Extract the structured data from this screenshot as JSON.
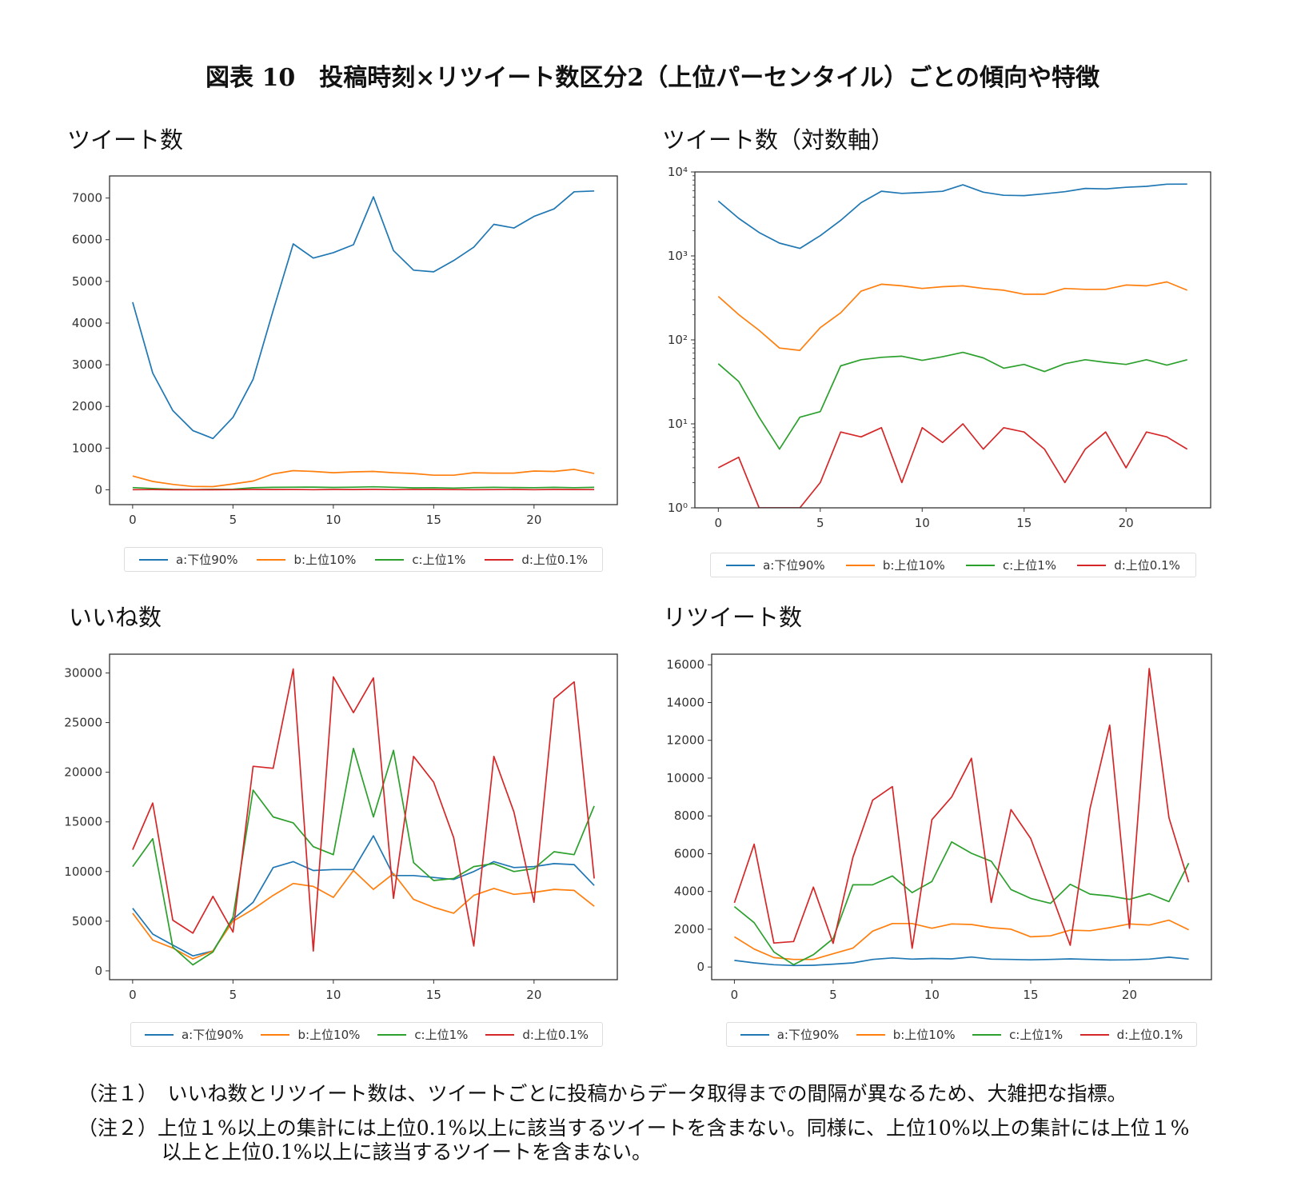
{
  "title": "図表 10　投稿時刻×リツイート数区分2（上位パーセンタイル）ごとの傾向や特徴",
  "legend": [
    "a:下位90%",
    "b:上位10%",
    "c:上位1%",
    "d:上位0.1%"
  ],
  "colors": [
    "#1f77b4",
    "#ff7f0e",
    "#2ca02c",
    "#d62728"
  ],
  "notes": [
    "（注１）　いいね数とリツイート数は、ツイートごとに投稿からデータ取得までの間隔が異なるため、大雑把な指標。",
    "（注２）上位１%以上の集計には上位0.1%以上に該当するツイートを含まない。同様に、上位10%以上の集計には上位１%",
    "以上と上位0.1%以上に該当するツイートを含まない。"
  ],
  "chart_data": [
    {
      "type": "line",
      "title": "ツイート数",
      "x": [
        0,
        1,
        2,
        3,
        4,
        5,
        6,
        7,
        8,
        9,
        10,
        11,
        12,
        13,
        14,
        15,
        16,
        17,
        18,
        19,
        20,
        21,
        22,
        23
      ],
      "xticks": [
        0,
        5,
        10,
        15,
        20
      ],
      "xtick_labels": [
        "0",
        "5",
        "10",
        "15",
        "20"
      ],
      "yticks": [
        0,
        1000,
        2000,
        3000,
        4000,
        5000,
        6000,
        7000
      ],
      "ytick_labels": [
        "0",
        "1000",
        "2000",
        "3000",
        "4000",
        "5000",
        "6000",
        "7000"
      ],
      "yscale": "linear",
      "xlim": [
        -1.15,
        24.15
      ],
      "ylim": [
        -356,
        7530
      ],
      "legend_position": "below",
      "series": [
        {
          "name": "a:下位90%",
          "values": [
            4500,
            2800,
            1900,
            1420,
            1230,
            1740,
            2650,
            4300,
            5900,
            5560,
            5690,
            5880,
            7030,
            5740,
            5270,
            5230,
            5500,
            5820,
            6370,
            6280,
            6560,
            6740,
            7150,
            7170
          ]
        },
        {
          "name": "b:上位10%",
          "values": [
            330,
            200,
            130,
            80,
            75,
            140,
            210,
            380,
            460,
            440,
            410,
            430,
            440,
            410,
            390,
            350,
            350,
            410,
            400,
            400,
            450,
            440,
            490,
            390
          ]
        },
        {
          "name": "c:上位1%",
          "values": [
            52,
            32,
            12,
            5,
            12,
            14,
            49,
            58,
            62,
            64,
            57,
            63,
            71,
            61,
            46,
            51,
            42,
            52,
            58,
            54,
            51,
            58,
            50,
            58
          ]
        },
        {
          "name": "d:上位0.1%",
          "values": [
            3,
            4,
            1,
            1,
            1,
            2,
            8,
            7,
            9,
            2,
            9,
            6,
            10,
            5,
            9,
            8,
            5,
            2,
            5,
            8,
            3,
            8,
            7,
            5
          ]
        }
      ]
    },
    {
      "type": "line",
      "title": "ツイート数（対数軸）",
      "x": [
        0,
        1,
        2,
        3,
        4,
        5,
        6,
        7,
        8,
        9,
        10,
        11,
        12,
        13,
        14,
        15,
        16,
        17,
        18,
        19,
        20,
        21,
        22,
        23
      ],
      "xticks": [
        0,
        5,
        10,
        15,
        20
      ],
      "xtick_labels": [
        "0",
        "5",
        "10",
        "15",
        "20"
      ],
      "yticks": [
        1,
        10,
        100,
        1000,
        10000
      ],
      "ytick_labels": [
        "10⁰",
        "10¹",
        "10²",
        "10³",
        "10⁴"
      ],
      "yscale": "log",
      "xlim": [
        -1.15,
        24.15
      ],
      "ylim": [
        1,
        10000
      ],
      "legend_position": "below",
      "series": [
        {
          "name": "a:下位90%",
          "values": [
            4500,
            2800,
            1900,
            1420,
            1230,
            1740,
            2650,
            4300,
            5900,
            5560,
            5690,
            5880,
            7030,
            5740,
            5270,
            5230,
            5500,
            5820,
            6370,
            6280,
            6560,
            6740,
            7150,
            7170
          ]
        },
        {
          "name": "b:上位10%",
          "values": [
            330,
            200,
            130,
            80,
            75,
            140,
            210,
            380,
            460,
            440,
            410,
            430,
            440,
            410,
            390,
            350,
            350,
            410,
            400,
            400,
            450,
            440,
            490,
            390
          ]
        },
        {
          "name": "c:上位1%",
          "values": [
            52,
            32,
            12,
            5,
            12,
            14,
            49,
            58,
            62,
            64,
            57,
            63,
            71,
            61,
            46,
            51,
            42,
            52,
            58,
            54,
            51,
            58,
            50,
            58
          ]
        },
        {
          "name": "d:上位0.1%",
          "values": [
            3,
            4,
            1,
            1,
            1,
            2,
            8,
            7,
            9,
            2,
            9,
            6,
            10,
            5,
            9,
            8,
            5,
            2,
            5,
            8,
            3,
            8,
            7,
            5
          ]
        }
      ]
    },
    {
      "type": "line",
      "title": "いいね数",
      "x": [
        0,
        1,
        2,
        3,
        4,
        5,
        6,
        7,
        8,
        9,
        10,
        11,
        12,
        13,
        14,
        15,
        16,
        17,
        18,
        19,
        20,
        21,
        22,
        23
      ],
      "xticks": [
        0,
        5,
        10,
        15,
        20
      ],
      "xtick_labels": [
        "0",
        "5",
        "10",
        "15",
        "20"
      ],
      "yticks": [
        0,
        5000,
        10000,
        15000,
        20000,
        25000,
        30000
      ],
      "ytick_labels": [
        "0",
        "5000",
        "10000",
        "15000",
        "20000",
        "25000",
        "30000"
      ],
      "yscale": "linear",
      "xlim": [
        -1.15,
        24.15
      ],
      "ylim": [
        -890,
        31890
      ],
      "legend_position": "below",
      "series": [
        {
          "name": "a:下位90%",
          "values": [
            6300,
            3700,
            2600,
            1500,
            2000,
            5200,
            6900,
            10400,
            11000,
            10100,
            10200,
            10200,
            13600,
            9600,
            9600,
            9400,
            9200,
            10000,
            11000,
            10400,
            10500,
            10800,
            10700,
            8600
          ]
        },
        {
          "name": "b:上位10%",
          "values": [
            5800,
            3100,
            2300,
            1200,
            2000,
            5000,
            6200,
            7600,
            8800,
            8500,
            7400,
            10100,
            8200,
            9800,
            7200,
            6400,
            5800,
            7600,
            8300,
            7700,
            7900,
            8200,
            8100,
            6500
          ]
        },
        {
          "name": "c:上位1%",
          "values": [
            10500,
            13300,
            2400,
            600,
            1900,
            5400,
            18200,
            15500,
            14900,
            12500,
            11700,
            22400,
            15500,
            22200,
            10900,
            9100,
            9300,
            10500,
            10800,
            10000,
            10300,
            12000,
            11700,
            16600
          ]
        },
        {
          "name": "d:上位0.1%",
          "values": [
            12200,
            16900,
            5100,
            3800,
            7500,
            3900,
            20600,
            20400,
            30400,
            2000,
            29600,
            26000,
            29500,
            7300,
            21600,
            19000,
            13400,
            2500,
            21600,
            16000,
            6900,
            27400,
            29100,
            9300
          ]
        }
      ]
    },
    {
      "type": "line",
      "title": "リツイート数",
      "x": [
        0,
        1,
        2,
        3,
        4,
        5,
        6,
        7,
        8,
        9,
        10,
        11,
        12,
        13,
        14,
        15,
        16,
        17,
        18,
        19,
        20,
        21,
        22,
        23
      ],
      "xticks": [
        0,
        5,
        10,
        15,
        20
      ],
      "xtick_labels": [
        "0",
        "5",
        "10",
        "15",
        "20"
      ],
      "yticks": [
        0,
        2000,
        4000,
        6000,
        8000,
        10000,
        12000,
        14000,
        16000
      ],
      "ytick_labels": [
        "0",
        "2000",
        "4000",
        "6000",
        "8000",
        "10000",
        "12000",
        "14000",
        "16000"
      ],
      "yscale": "linear",
      "xlim": [
        -1.15,
        24.15
      ],
      "ylim": [
        -670,
        16560
      ],
      "legend_position": "below",
      "series": [
        {
          "name": "a:下位90%",
          "values": [
            350,
            220,
            120,
            80,
            90,
            150,
            220,
            400,
            480,
            420,
            450,
            430,
            530,
            420,
            400,
            380,
            400,
            430,
            400,
            370,
            380,
            420,
            520,
            420
          ]
        },
        {
          "name": "b:上位10%",
          "values": [
            1600,
            950,
            500,
            400,
            400,
            700,
            1000,
            1900,
            2300,
            2300,
            2050,
            2280,
            2250,
            2080,
            2000,
            1600,
            1650,
            1950,
            1920,
            2080,
            2280,
            2220,
            2480,
            1970
          ]
        },
        {
          "name": "c:上位1%",
          "values": [
            3200,
            2350,
            800,
            120,
            650,
            1500,
            4350,
            4350,
            4820,
            3940,
            4530,
            6620,
            6020,
            5600,
            4100,
            3630,
            3370,
            4380,
            3860,
            3760,
            3580,
            3880,
            3460,
            5500
          ]
        },
        {
          "name": "d:上位0.1%",
          "values": [
            3400,
            6500,
            1270,
            1350,
            4230,
            1250,
            5800,
            8830,
            9550,
            1000,
            7800,
            9000,
            11050,
            3420,
            8330,
            6800,
            4000,
            1150,
            8380,
            12800,
            2050,
            15800,
            7900,
            4480
          ]
        }
      ]
    }
  ]
}
